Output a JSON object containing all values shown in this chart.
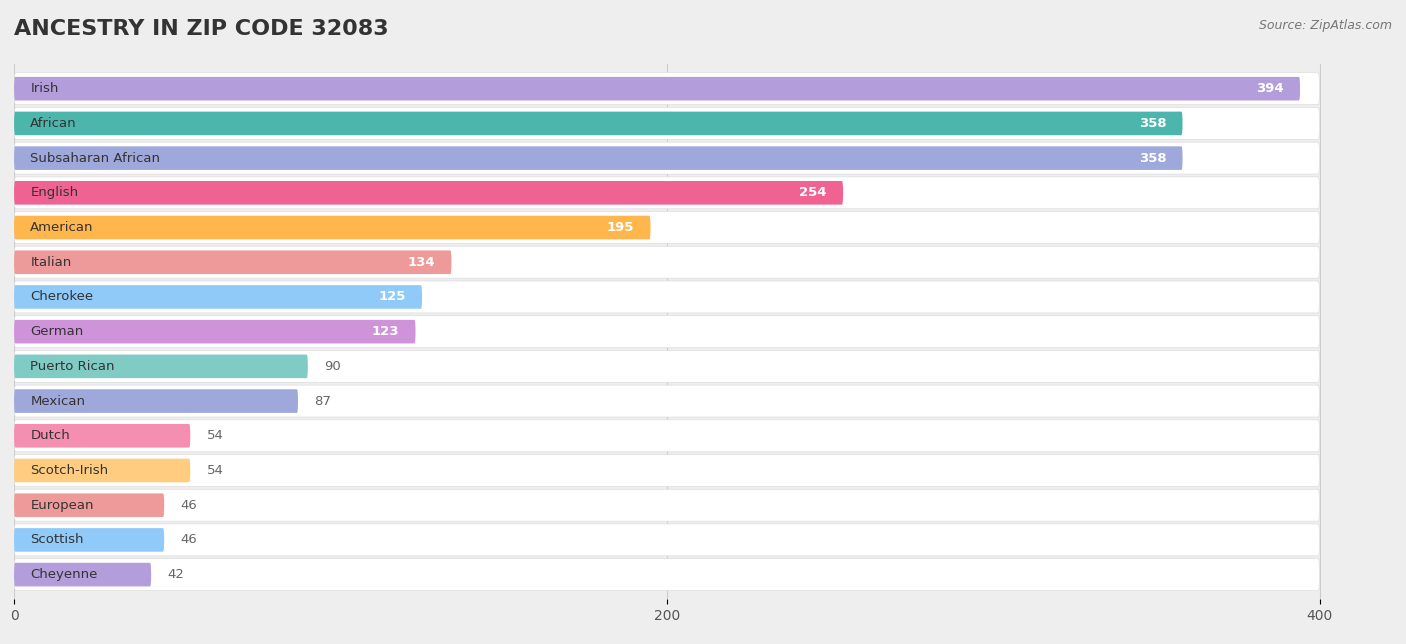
{
  "title": "ANCESTRY IN ZIP CODE 32083",
  "source": "Source: ZipAtlas.com",
  "categories": [
    "Irish",
    "African",
    "Subsaharan African",
    "English",
    "American",
    "Italian",
    "Cherokee",
    "German",
    "Puerto Rican",
    "Mexican",
    "Dutch",
    "Scotch-Irish",
    "European",
    "Scottish",
    "Cheyenne"
  ],
  "values": [
    394,
    358,
    358,
    254,
    195,
    134,
    125,
    123,
    90,
    87,
    54,
    54,
    46,
    46,
    42
  ],
  "bar_colors": [
    "#b39ddb",
    "#4db6ac",
    "#9fa8da",
    "#f06292",
    "#ffb74d",
    "#ef9a9a",
    "#90caf9",
    "#ce93d8",
    "#80cbc4",
    "#9fa8da",
    "#f48fb1",
    "#ffcc80",
    "#ef9a9a",
    "#90caf9",
    "#b39ddb"
  ],
  "xlim_data": 400,
  "xlim_display": 420,
  "background_color": "#eeeeee",
  "row_bg_color": "#ffffff",
  "title_fontsize": 16,
  "bar_height": 0.68,
  "value_inside_threshold": 100,
  "value_color_inside": "#ffffff",
  "value_color_outside": "#666666",
  "label_color": "#333333",
  "label_fontsize": 9.5,
  "value_fontsize": 9.5,
  "xtick_fontsize": 10,
  "xticks": [
    0,
    200,
    400
  ]
}
